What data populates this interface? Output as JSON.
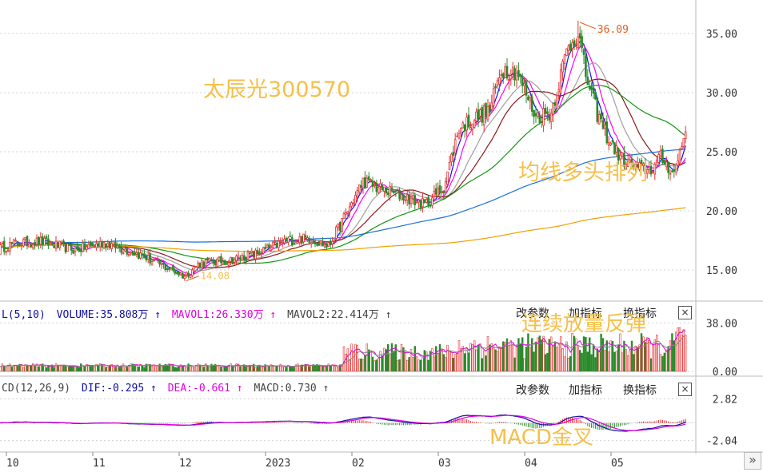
{
  "chart_data": {
    "type": "candlestick",
    "months": [
      "10",
      "11",
      "12",
      "2023",
      "02",
      "03",
      "04",
      "05"
    ],
    "price_axis": {
      "ticks": [
        "35.00",
        "30.00",
        "25.00",
        "20.00",
        "15.00"
      ],
      "ylim": [
        12.5,
        37.5
      ]
    },
    "high_mark": {
      "label": "36.09",
      "value": 36.09
    },
    "low_mark": {
      "label": "14.08",
      "value": 14.08
    },
    "price_keypoints": [
      [
        0,
        16.8
      ],
      [
        10,
        17.3
      ],
      [
        22,
        17.4
      ],
      [
        40,
        16.7
      ],
      [
        55,
        17.3
      ],
      [
        72,
        16.4
      ],
      [
        85,
        15.4
      ],
      [
        97,
        14.5
      ],
      [
        105,
        15.6
      ],
      [
        120,
        15.8
      ],
      [
        135,
        16.4
      ],
      [
        150,
        17.5
      ],
      [
        162,
        17.7
      ],
      [
        172,
        17.0
      ],
      [
        182,
        20.0
      ],
      [
        190,
        22.5
      ],
      [
        200,
        21.8
      ],
      [
        210,
        21.3
      ],
      [
        222,
        20.5
      ],
      [
        232,
        22.0
      ],
      [
        240,
        27.0
      ],
      [
        248,
        27.8
      ],
      [
        256,
        28.5
      ],
      [
        262,
        32.0
      ],
      [
        270,
        31.8
      ],
      [
        280,
        28.0
      ],
      [
        288,
        28.3
      ],
      [
        296,
        33.5
      ],
      [
        302,
        35.2
      ],
      [
        306,
        31.5
      ],
      [
        312,
        28.2
      ],
      [
        318,
        26.0
      ],
      [
        324,
        24.5
      ],
      [
        332,
        23.6
      ],
      [
        340,
        23.5
      ],
      [
        345,
        24.5
      ],
      [
        352,
        23.2
      ],
      [
        358,
        26.8
      ]
    ],
    "ma_lines": [
      {
        "name": "MA5",
        "color": "#1010ff",
        "period": 5
      },
      {
        "name": "MA10",
        "color": "#ff00ff",
        "period": 10
      },
      {
        "name": "MA20",
        "color": "#a0a0a0",
        "period": 20
      },
      {
        "name": "MA30",
        "color": "#8b1a1a",
        "period": 30
      },
      {
        "name": "MA60",
        "color": "#129612",
        "period": 60
      },
      {
        "name": "MA120",
        "color": "#1a70d8",
        "period": 120
      },
      {
        "name": "MA250",
        "color": "#f0a000",
        "period": 250
      }
    ],
    "volume_panel": {
      "header": {
        "name": "L(5,10)",
        "volume": "VOLUME:35.808万",
        "mavol1": "MAVOL1:26.330万",
        "mavol2": "MAVOL2:22.414万"
      },
      "ticks": [
        "38.00",
        "0.00"
      ],
      "ylim": [
        0,
        42
      ]
    },
    "macd_panel": {
      "header": {
        "name": "CD(12,26,9)",
        "dif": "DIF:-0.295",
        "dea": "DEA:-0.661",
        "macd": "MACD:0.730"
      },
      "ticks": [
        "2.82",
        "-2.04"
      ],
      "ylim": [
        -3,
        3.5
      ]
    }
  },
  "panel_buttons": {
    "modify": "改参数",
    "add": "加指标",
    "switch": "换指标",
    "close": "×"
  },
  "annotations": {
    "stock": "太辰光300570",
    "ma_bull": "均线多头排列",
    "volume_up": "连续放量反弹",
    "macd_cross": "MACD金叉"
  },
  "nav_icon": "»",
  "colors": {
    "up": "#e63030",
    "down": "#2a8a2a",
    "header_blue": "#1010a0",
    "header_pink": "#e000e0",
    "header_gray": "#444444",
    "grid": "#d0d0d0"
  }
}
